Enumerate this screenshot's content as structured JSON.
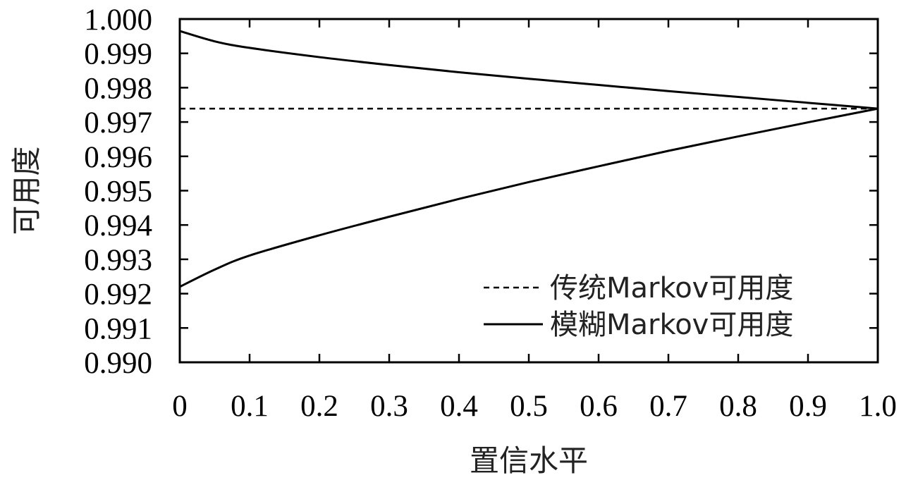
{
  "chart_data": {
    "type": "line",
    "xlabel": "置信水平",
    "ylabel": "可用度",
    "xlim": [
      0,
      1.0
    ],
    "ylim": [
      0.99,
      1.0
    ],
    "x_ticks": [
      "0",
      "0.1",
      "0.2",
      "0.3",
      "0.4",
      "0.5",
      "0.6",
      "0.7",
      "0.8",
      "0.9",
      "1.0"
    ],
    "y_ticks": [
      "1.000",
      "0.999",
      "0.998",
      "0.997",
      "0.996",
      "0.995",
      "0.994",
      "0.993",
      "0.992",
      "0.991",
      "0.990"
    ],
    "grid": false,
    "legend_position": "bottom-right",
    "series": [
      {
        "name": "传统Markov可用度",
        "style": "dashed",
        "color": "#000000",
        "x": [
          0,
          1.0
        ],
        "y": [
          0.99739,
          0.99739
        ]
      },
      {
        "name": "模糊Markov可用度",
        "style": "solid",
        "color": "#000000",
        "x": [
          0,
          0.05,
          0.1,
          0.2,
          0.3,
          0.4,
          0.5,
          0.6,
          0.7,
          0.8,
          0.9,
          1.0
        ],
        "y": [
          0.99965,
          0.99935,
          0.99916,
          0.99889,
          0.99866,
          0.99845,
          0.99826,
          0.99808,
          0.9979,
          0.99773,
          0.99756,
          0.99739
        ]
      },
      {
        "name": "",
        "style": "solid",
        "color": "#000000",
        "x": [
          0,
          0.05,
          0.1,
          0.2,
          0.3,
          0.4,
          0.5,
          0.6,
          0.7,
          0.8,
          0.9,
          1.0
        ],
        "y": [
          0.9922,
          0.9927,
          0.99311,
          0.9937,
          0.99424,
          0.99476,
          0.99525,
          0.99571,
          0.99616,
          0.99658,
          0.99699,
          0.99739
        ]
      }
    ]
  }
}
